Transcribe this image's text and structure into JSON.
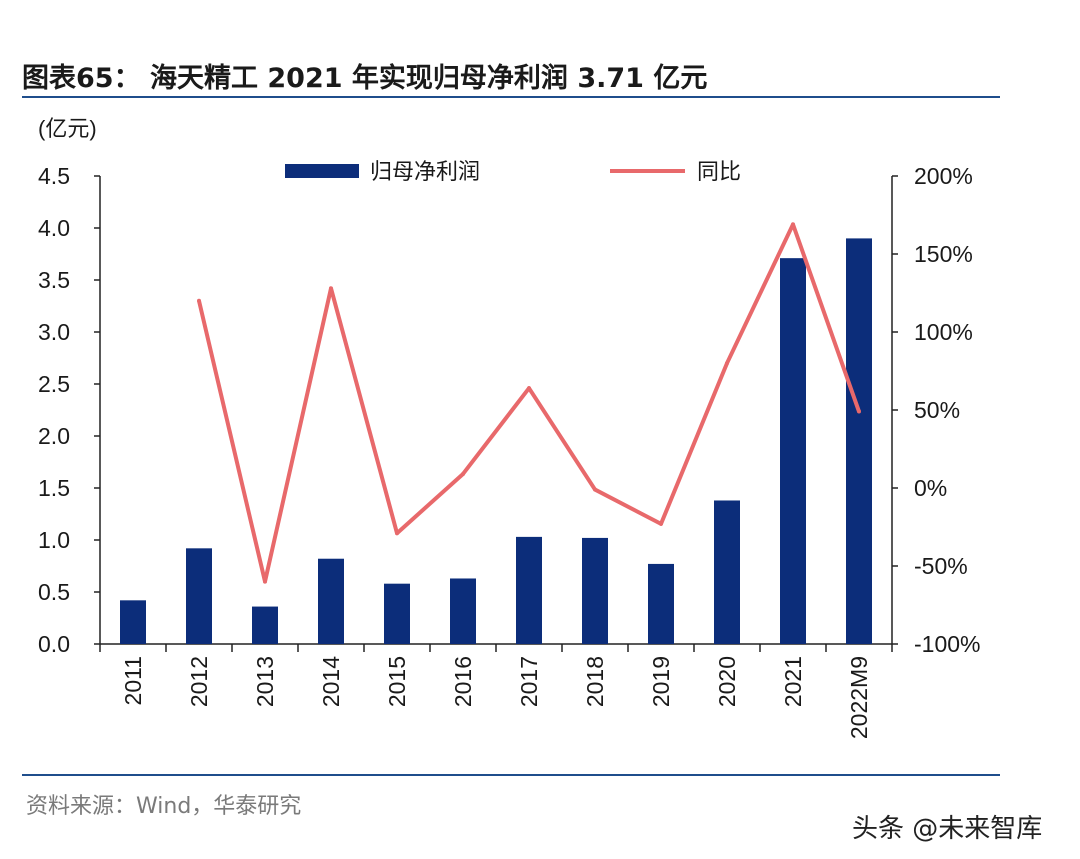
{
  "title": "图表65： 海天精工 2021 年实现归母净利润 3.71 亿元",
  "source": "资料来源：Wind，华泰研究",
  "watermark": "头条 @未来智库",
  "colors": {
    "bar": "#0c2d7a",
    "line": "#e8696b",
    "rule": "#1f4e8c"
  },
  "chart_data": {
    "type": "bar+line",
    "categories": [
      "2011",
      "2012",
      "2013",
      "2014",
      "2015",
      "2016",
      "2017",
      "2018",
      "2019",
      "2020",
      "2021",
      "2022M9"
    ],
    "left_axis": {
      "unit_label": "(亿元)",
      "min": 0,
      "max": 4.5,
      "ticks": [
        "0.0",
        "0.5",
        "1.0",
        "1.5",
        "2.0",
        "2.5",
        "3.0",
        "3.5",
        "4.0",
        "4.5"
      ]
    },
    "right_axis": {
      "min": -100,
      "max": 200,
      "ticks": [
        "-100%",
        "-50%",
        "0%",
        "50%",
        "100%",
        "150%",
        "200%"
      ]
    },
    "series": [
      {
        "name": "归母净利润",
        "type": "bar",
        "axis": "left",
        "values": [
          0.42,
          0.92,
          0.36,
          0.82,
          0.58,
          0.63,
          1.03,
          1.02,
          0.77,
          1.38,
          3.71,
          3.9
        ]
      },
      {
        "name": "同比",
        "type": "line",
        "axis": "right",
        "values": [
          null,
          120,
          -60,
          128,
          -29,
          9,
          64,
          -1,
          -23,
          80,
          169,
          49
        ]
      }
    ],
    "legend": [
      "归母净利润",
      "同比"
    ],
    "legend_position": "top-center"
  }
}
